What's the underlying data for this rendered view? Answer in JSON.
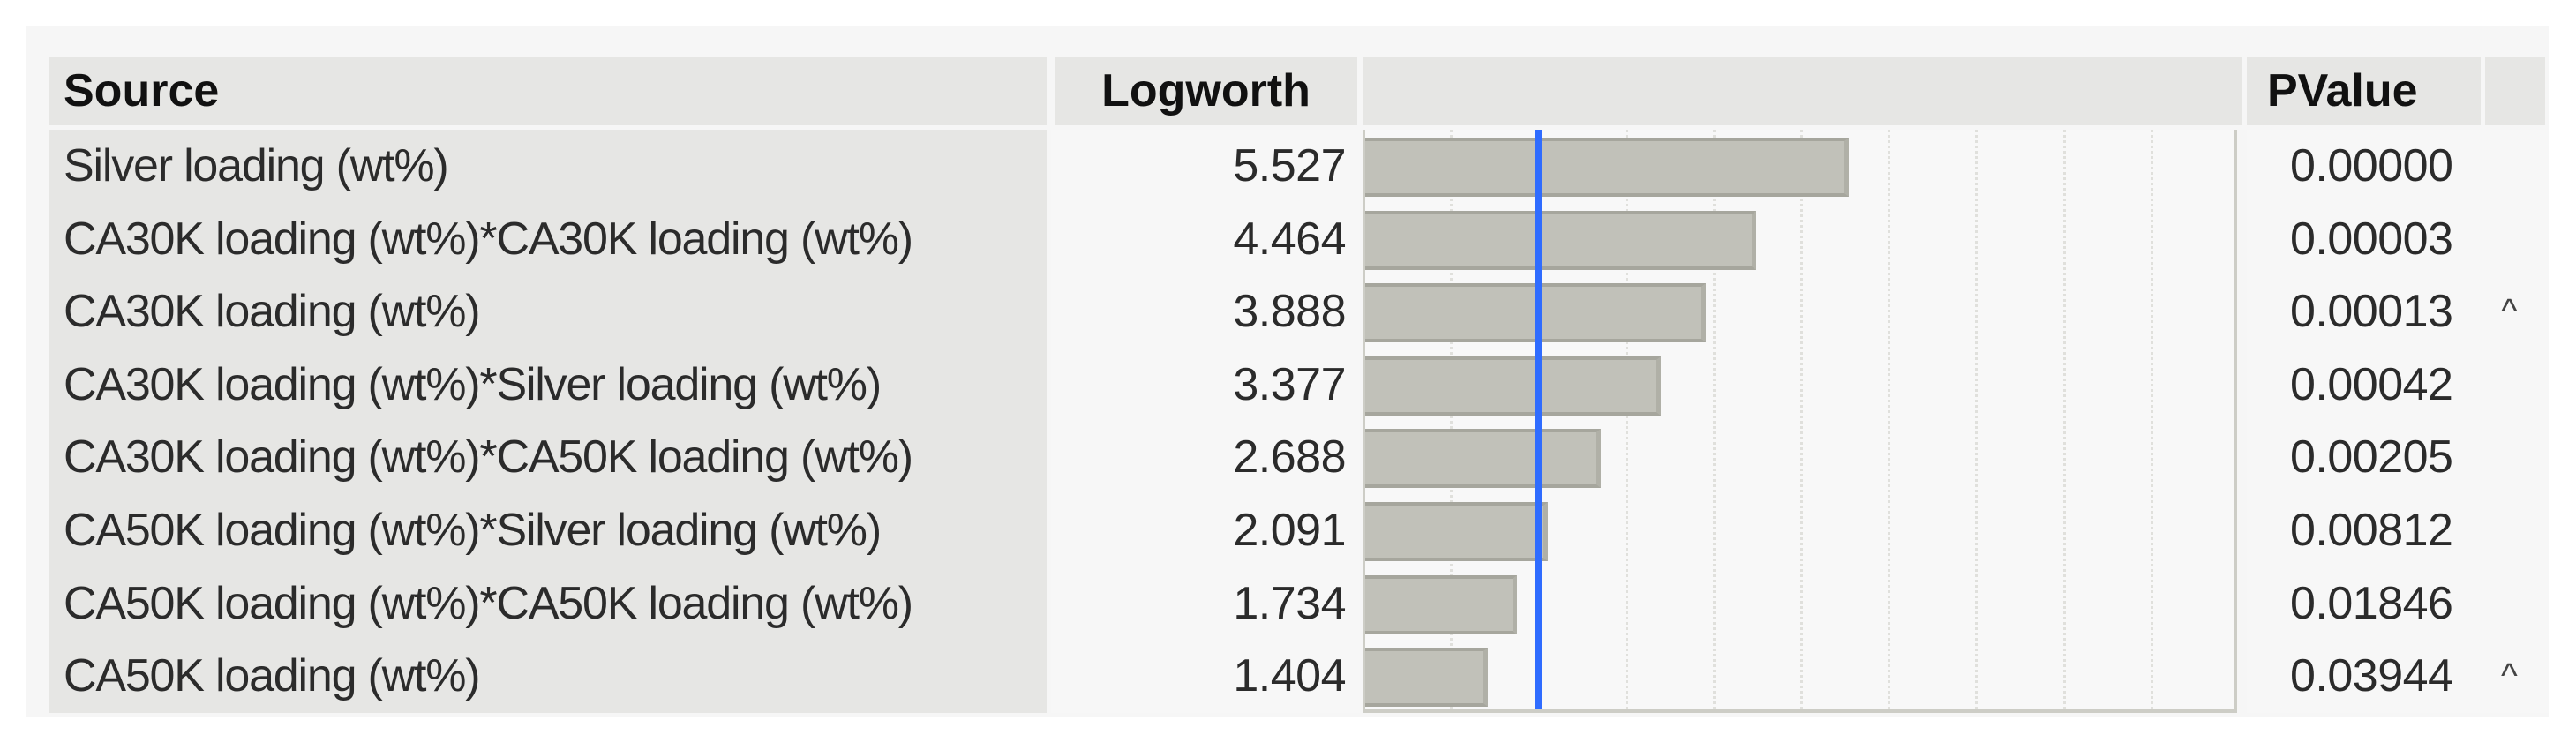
{
  "table": {
    "columns": {
      "source": "Source",
      "logworth": "Logworth",
      "pvalue": "PValue"
    },
    "rows": [
      {
        "source": "Silver loading (wt%)",
        "logworth": "5.527",
        "pvalue": "0.00000",
        "flag": ""
      },
      {
        "source": "CA30K loading (wt%)*CA30K loading (wt%)",
        "logworth": "4.464",
        "pvalue": "0.00003",
        "flag": ""
      },
      {
        "source": "CA30K loading (wt%)",
        "logworth": "3.888",
        "pvalue": "0.00013",
        "flag": "^"
      },
      {
        "source": "CA30K loading (wt%)*Silver loading (wt%)",
        "logworth": "3.377",
        "pvalue": "0.00042",
        "flag": ""
      },
      {
        "source": "CA30K loading (wt%)*CA50K loading (wt%)",
        "logworth": "2.688",
        "pvalue": "0.00205",
        "flag": ""
      },
      {
        "source": "CA50K loading (wt%)*Silver loading (wt%)",
        "logworth": "2.091",
        "pvalue": "0.00812",
        "flag": ""
      },
      {
        "source": "CA50K loading (wt%)*CA50K loading (wt%)",
        "logworth": "1.734",
        "pvalue": "0.01846",
        "flag": ""
      },
      {
        "source": "CA50K loading (wt%)",
        "logworth": "1.404",
        "pvalue": "0.03944",
        "flag": "^"
      }
    ]
  },
  "colors": {
    "bar_fill": "#c1c1b9",
    "bar_border": "#a6a69d",
    "significance_line": "#2f6cff",
    "header_bg": "#e6e6e4",
    "cell_bg": "#f7f7f7"
  },
  "chart_data": {
    "type": "bar",
    "orientation": "horizontal",
    "title": "",
    "xlabel": "Logworth",
    "ylabel": "Source",
    "categories": [
      "Silver loading (wt%)",
      "CA30K loading (wt%)*CA30K loading (wt%)",
      "CA30K loading (wt%)",
      "CA30K loading (wt%)*Silver loading (wt%)",
      "CA30K loading (wt%)*CA50K loading (wt%)",
      "CA50K loading (wt%)*Silver loading (wt%)",
      "CA50K loading (wt%)*CA50K loading (wt%)",
      "CA50K loading (wt%)"
    ],
    "values": [
      5.527,
      4.464,
      3.888,
      3.377,
      2.688,
      2.091,
      1.734,
      1.404
    ],
    "pvalues": [
      0.0,
      3e-05,
      0.00013,
      0.00042,
      0.00205,
      0.00812,
      0.01846,
      0.03944
    ],
    "xlim": [
      0,
      10
    ],
    "gridlines": [
      1,
      2,
      3,
      4,
      5,
      6,
      7,
      8,
      9
    ],
    "grid": true,
    "reference_line": {
      "value": 2,
      "meaning": "p = 0.01",
      "color": "#2f6cff"
    },
    "annotations": [
      "^ on CA30K loading (wt%)",
      "^ on CA50K loading (wt%)"
    ]
  }
}
